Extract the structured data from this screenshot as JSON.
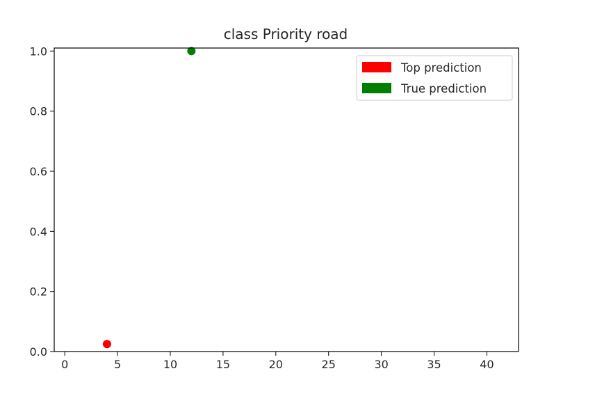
{
  "chart_data": {
    "type": "scatter",
    "title": "class Priority road",
    "xlabel": "",
    "ylabel": "",
    "xlim": [
      -1.0,
      43.0
    ],
    "ylim": [
      0.0,
      1.01
    ],
    "x_ticks": [
      0,
      5,
      10,
      15,
      20,
      25,
      30,
      35,
      40
    ],
    "x_tick_labels": [
      "0",
      "5",
      "10",
      "15",
      "20",
      "25",
      "30",
      "35",
      "40"
    ],
    "y_ticks": [
      0.0,
      0.2,
      0.4,
      0.6,
      0.8,
      1.0
    ],
    "y_tick_labels": [
      "0.0",
      "0.2",
      "0.4",
      "0.6",
      "0.8",
      "1.0"
    ],
    "grid": false,
    "legend_position": "top-right",
    "series": [
      {
        "name": "Top prediction",
        "color": "#ff0000",
        "points": [
          {
            "x": 4,
            "y": 0.025
          }
        ]
      },
      {
        "name": "True prediction",
        "color": "#008000",
        "points": [
          {
            "x": 12,
            "y": 1.0
          }
        ]
      }
    ]
  }
}
